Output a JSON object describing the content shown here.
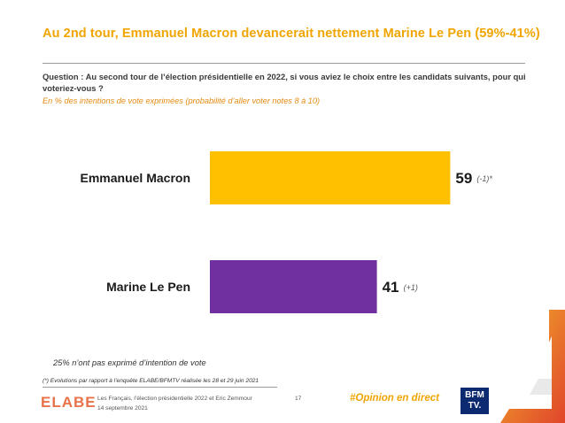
{
  "header": {
    "title": "Au 2nd tour, Emmanuel Macron devancerait nettement Marine Le Pen (59%-41%)",
    "question": "Question : Au second tour de l’élection présidentielle en 2022, si vous aviez le choix entre les candidats suivants, pour qui voteriez-vous ?",
    "subquestion": "En % des intentions de vote exprimées (probabilité d’aller voter notes 8 à 10)"
  },
  "chart_data": {
    "type": "bar",
    "orientation": "horizontal",
    "categories": [
      "Emmanuel Macron",
      "Marine Le Pen"
    ],
    "values": [
      59,
      41
    ],
    "changes": [
      "(-1)*",
      "(+1)"
    ],
    "colors": [
      "#ffc000",
      "#7030a0"
    ],
    "xlim": [
      0,
      100
    ]
  },
  "notes": {
    "abstention": "25% n’ont pas exprimé d’intention de vote",
    "evolution": "(*) Evolutions par rapport à l’enquête ELABE/BFMTV réalisée les 28 et 29 juin 2021"
  },
  "footer": {
    "logo": "ELABE",
    "description": "Les Français, l’élection présidentielle 2022 et Eric Zemmour",
    "date": "14 septembre 2021",
    "page": "17",
    "hashtag": "#Opinion en direct",
    "partner_line1": "BFM",
    "partner_line2": "TV."
  }
}
